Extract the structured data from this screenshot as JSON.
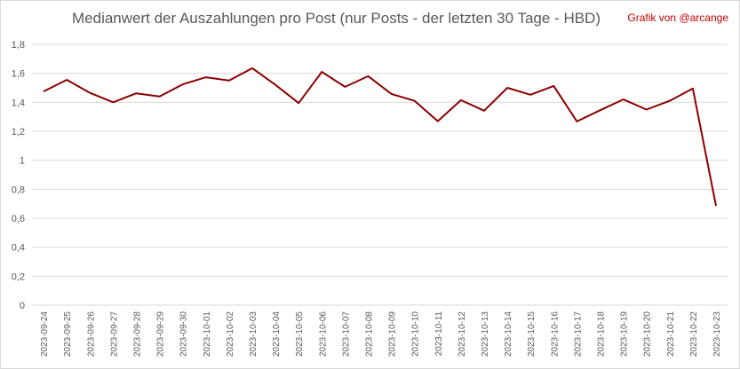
{
  "title": "Medianwert der Auszahlungen pro Post (nur Posts - der letzten 30 Tage - HBD)",
  "credit": "Grafik von @arcange",
  "colors": {
    "line": "#8b0000",
    "grid": "#d9d9d9",
    "text": "#595959",
    "credit": "#c00000"
  },
  "chart_data": {
    "type": "line",
    "title": "Medianwert der Auszahlungen pro Post (nur Posts - der letzten 30 Tage - HBD)",
    "xlabel": "",
    "ylabel": "",
    "ylim": [
      0,
      1.8
    ],
    "yticks": [
      "0",
      "0,2",
      "0,4",
      "0,6",
      "0,8",
      "1",
      "1,2",
      "1,4",
      "1,6",
      "1,8"
    ],
    "grid": true,
    "legend": "none",
    "x": [
      "2023-09-24",
      "2023-09-25",
      "2023-09-26",
      "2023-09-27",
      "2023-09-28",
      "2023-09-29",
      "2023-09-30",
      "2023-10-01",
      "2023-10-02",
      "2023-10-03",
      "2023-10-04",
      "2023-10-05",
      "2023-10-06",
      "2023-10-07",
      "2023-10-08",
      "2023-10-09",
      "2023-10-10",
      "2023-10-11",
      "2023-10-12",
      "2023-10-13",
      "2023-10-14",
      "2023-10-15",
      "2023-10-16",
      "2023-10-17",
      "2023-10-18",
      "2023-10-19",
      "2023-10-20",
      "2023-10-21",
      "2023-10-22",
      "2023-10-23"
    ],
    "series": [
      {
        "values": [
          1.475,
          1.555,
          1.465,
          1.4,
          1.462,
          1.44,
          1.524,
          1.573,
          1.55,
          1.635,
          1.52,
          1.395,
          1.61,
          1.507,
          1.58,
          1.458,
          1.41,
          1.27,
          1.415,
          1.342,
          1.5,
          1.452,
          1.513,
          1.268,
          1.345,
          1.42,
          1.35,
          1.41,
          1.495,
          0.685
        ]
      }
    ]
  }
}
